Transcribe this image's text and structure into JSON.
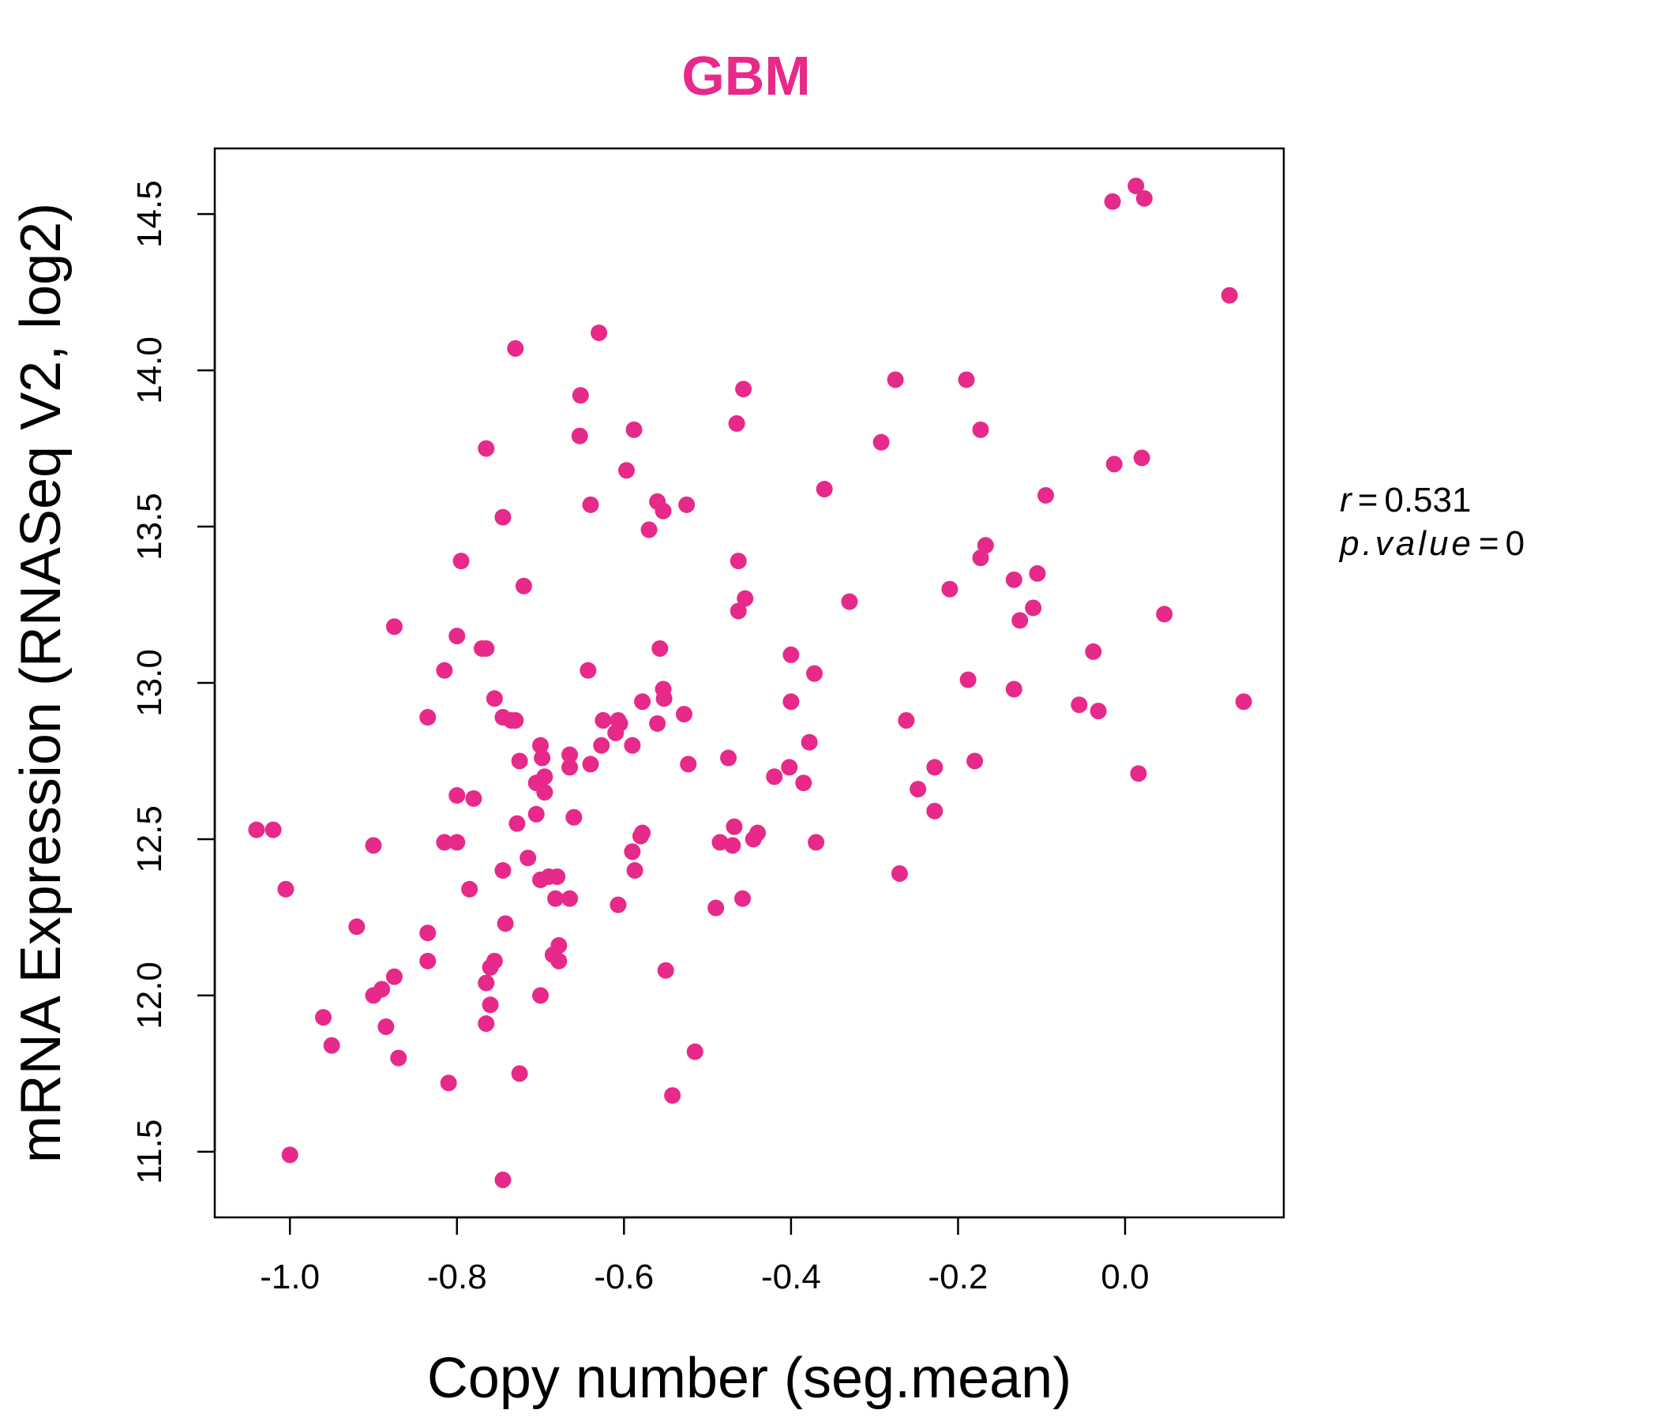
{
  "chart_data": {
    "type": "scatter",
    "title": "GBM",
    "xlabel": "Copy number (seg.mean)",
    "ylabel": "mRNA Expression (RNASeq V2, log2)",
    "xlim": [
      -1.09,
      0.19
    ],
    "ylim": [
      11.29,
      14.71
    ],
    "x_ticks": [
      -1.0,
      -0.8,
      -0.6,
      -0.4,
      -0.2,
      0.0
    ],
    "x_tick_labels": [
      "-1.0",
      "-0.8",
      "-0.6",
      "-0.4",
      "-0.2",
      "0.0"
    ],
    "y_ticks": [
      11.5,
      12.0,
      12.5,
      13.0,
      13.5,
      14.0,
      14.5
    ],
    "y_tick_labels": [
      "11.5",
      "12.0",
      "12.5",
      "13.0",
      "13.5",
      "14.0",
      "14.5"
    ],
    "grid": false,
    "legend": "none",
    "point_color": "#e7298a",
    "stats": {
      "r_label": "r",
      "r_value": "0.531",
      "p_label": "p.value",
      "p_value": "0"
    },
    "points": [
      [
        -1.04,
        12.53
      ],
      [
        -1.02,
        12.53
      ],
      [
        -1.005,
        12.34
      ],
      [
        -1.0,
        11.49
      ],
      [
        -0.96,
        11.93
      ],
      [
        -0.95,
        11.84
      ],
      [
        -0.92,
        12.22
      ],
      [
        -0.9,
        12.48
      ],
      [
        -0.9,
        12.0
      ],
      [
        -0.89,
        12.02
      ],
      [
        -0.885,
        11.9
      ],
      [
        -0.875,
        12.06
      ],
      [
        -0.87,
        11.8
      ],
      [
        -0.875,
        13.18
      ],
      [
        -0.835,
        12.2
      ],
      [
        -0.835,
        12.11
      ],
      [
        -0.835,
        12.89
      ],
      [
        -0.815,
        13.04
      ],
      [
        -0.815,
        12.49
      ],
      [
        -0.81,
        11.72
      ],
      [
        -0.8,
        13.15
      ],
      [
        -0.8,
        12.64
      ],
      [
        -0.8,
        12.49
      ],
      [
        -0.795,
        13.39
      ],
      [
        -0.78,
        12.63
      ],
      [
        -0.785,
        12.34
      ],
      [
        -0.77,
        13.11
      ],
      [
        -0.765,
        13.11
      ],
      [
        -0.765,
        13.75
      ],
      [
        -0.765,
        12.04
      ],
      [
        -0.765,
        11.91
      ],
      [
        -0.76,
        11.97
      ],
      [
        -0.76,
        12.09
      ],
      [
        -0.755,
        12.11
      ],
      [
        -0.755,
        12.95
      ],
      [
        -0.745,
        13.53
      ],
      [
        -0.745,
        12.89
      ],
      [
        -0.745,
        12.4
      ],
      [
        -0.742,
        12.23
      ],
      [
        -0.745,
        11.41
      ],
      [
        -0.735,
        12.88
      ],
      [
        -0.73,
        14.07
      ],
      [
        -0.73,
        12.88
      ],
      [
        -0.728,
        12.55
      ],
      [
        -0.725,
        12.75
      ],
      [
        -0.725,
        11.75
      ],
      [
        -0.72,
        13.31
      ],
      [
        -0.715,
        12.44
      ],
      [
        -0.705,
        12.58
      ],
      [
        -0.705,
        12.68
      ],
      [
        -0.7,
        12.8
      ],
      [
        -0.7,
        12.37
      ],
      [
        -0.7,
        12.0
      ],
      [
        -0.698,
        12.76
      ],
      [
        -0.695,
        12.7
      ],
      [
        -0.695,
        12.65
      ],
      [
        -0.69,
        12.38
      ],
      [
        -0.685,
        12.13
      ],
      [
        -0.682,
        12.31
      ],
      [
        -0.68,
        12.38
      ],
      [
        -0.678,
        12.16
      ],
      [
        -0.678,
        12.11
      ],
      [
        -0.665,
        12.77
      ],
      [
        -0.665,
        12.73
      ],
      [
        -0.665,
        12.31
      ],
      [
        -0.66,
        12.57
      ],
      [
        -0.652,
        13.92
      ],
      [
        -0.653,
        13.79
      ],
      [
        -0.643,
        13.04
      ],
      [
        -0.64,
        13.57
      ],
      [
        -0.64,
        12.74
      ],
      [
        -0.63,
        14.12
      ],
      [
        -0.627,
        12.8
      ],
      [
        -0.625,
        12.88
      ],
      [
        -0.61,
        12.84
      ],
      [
        -0.607,
        12.88
      ],
      [
        -0.607,
        12.29
      ],
      [
        -0.605,
        12.87
      ],
      [
        -0.597,
        13.68
      ],
      [
        -0.59,
        12.46
      ],
      [
        -0.59,
        12.8
      ],
      [
        -0.588,
        13.81
      ],
      [
        -0.587,
        12.4
      ],
      [
        -0.58,
        12.51
      ],
      [
        -0.578,
        12.94
      ],
      [
        -0.578,
        12.52
      ],
      [
        -0.57,
        13.49
      ],
      [
        -0.56,
        12.87
      ],
      [
        -0.56,
        13.58
      ],
      [
        -0.557,
        13.11
      ],
      [
        -0.553,
        13.55
      ],
      [
        -0.553,
        12.98
      ],
      [
        -0.552,
        12.95
      ],
      [
        -0.55,
        12.08
      ],
      [
        -0.542,
        11.68
      ],
      [
        -0.525,
        13.57
      ],
      [
        -0.528,
        12.9
      ],
      [
        -0.523,
        12.74
      ],
      [
        -0.515,
        11.82
      ],
      [
        -0.49,
        12.28
      ],
      [
        -0.485,
        12.49
      ],
      [
        -0.475,
        12.76
      ],
      [
        -0.47,
        12.48
      ],
      [
        -0.468,
        12.54
      ],
      [
        -0.465,
        13.83
      ],
      [
        -0.463,
        13.39
      ],
      [
        -0.463,
        13.23
      ],
      [
        -0.458,
        12.31
      ],
      [
        -0.457,
        13.94
      ],
      [
        -0.455,
        13.27
      ],
      [
        -0.445,
        12.5
      ],
      [
        -0.44,
        12.52
      ],
      [
        -0.42,
        12.7
      ],
      [
        -0.4,
        12.94
      ],
      [
        -0.402,
        12.73
      ],
      [
        -0.4,
        13.09
      ],
      [
        -0.385,
        12.68
      ],
      [
        -0.378,
        12.81
      ],
      [
        -0.372,
        13.03
      ],
      [
        -0.37,
        12.49
      ],
      [
        -0.36,
        13.62
      ],
      [
        -0.33,
        13.26
      ],
      [
        -0.292,
        13.77
      ],
      [
        -0.275,
        13.97
      ],
      [
        -0.27,
        12.39
      ],
      [
        -0.262,
        12.88
      ],
      [
        -0.248,
        12.66
      ],
      [
        -0.228,
        12.73
      ],
      [
        -0.228,
        12.59
      ],
      [
        -0.21,
        13.3
      ],
      [
        -0.19,
        13.97
      ],
      [
        -0.188,
        13.01
      ],
      [
        -0.18,
        12.75
      ],
      [
        -0.173,
        13.81
      ],
      [
        -0.173,
        13.4
      ],
      [
        -0.167,
        13.44
      ],
      [
        -0.133,
        13.33
      ],
      [
        -0.133,
        12.98
      ],
      [
        -0.126,
        13.2
      ],
      [
        -0.11,
        13.24
      ],
      [
        -0.105,
        13.35
      ],
      [
        -0.095,
        13.6
      ],
      [
        -0.055,
        12.93
      ],
      [
        -0.038,
        13.1
      ],
      [
        -0.032,
        12.91
      ],
      [
        -0.015,
        14.54
      ],
      [
        -0.013,
        13.7
      ],
      [
        0.013,
        14.59
      ],
      [
        0.016,
        12.71
      ],
      [
        0.02,
        13.72
      ],
      [
        0.023,
        14.55
      ],
      [
        0.047,
        13.22
      ],
      [
        0.125,
        14.24
      ],
      [
        0.142,
        12.94
      ]
    ]
  }
}
